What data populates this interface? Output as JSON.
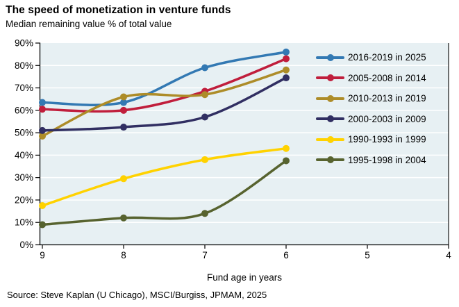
{
  "header": {
    "title": "The speed of monetization in venture funds",
    "subtitle": "Median remaining value % of total value"
  },
  "footer": {
    "source": "Source: Steve Kaplan (U Chicago), MSCI/Burgiss, JPMAM, 2025"
  },
  "chart_data": {
    "type": "line",
    "title": "The speed of monetization in venture funds",
    "subtitle": "Median remaining value % of total value",
    "xlabel": "Fund age in years",
    "ylabel": "Median remaining value % of total value",
    "x": [
      9,
      8,
      7,
      6
    ],
    "x_axis": {
      "ticks": [
        9,
        8,
        7,
        6,
        5,
        4
      ],
      "tick_labels": [
        "9",
        "8",
        "7",
        "6",
        "5",
        "4"
      ],
      "reversed": true
    },
    "y_axis": {
      "min": 0,
      "max": 90,
      "step": 10,
      "tick_labels": [
        "0%",
        "10%",
        "20%",
        "30%",
        "40%",
        "50%",
        "60%",
        "70%",
        "80%",
        "90%"
      ]
    },
    "series": [
      {
        "name": "2016-2019 in 2025",
        "color": "#3379B3",
        "values": [
          63.5,
          63.5,
          79,
          86
        ]
      },
      {
        "name": "2005-2008 in 2014",
        "color": "#C01E3C",
        "values": [
          60.5,
          60,
          68.5,
          83
        ]
      },
      {
        "name": "2010-2013 in 2019",
        "color": "#AD8C28",
        "values": [
          48.5,
          66,
          67,
          78
        ]
      },
      {
        "name": "2000-2003 in 2009",
        "color": "#312F62",
        "values": [
          51,
          52.5,
          57,
          74.5
        ]
      },
      {
        "name": "1990-1993 in 1999",
        "color": "#FFD200",
        "values": [
          17.5,
          29.5,
          38,
          43
        ]
      },
      {
        "name": "1995-1998 in 2004",
        "color": "#57632F",
        "values": [
          9,
          12,
          14,
          37.5
        ]
      }
    ],
    "legend": {
      "position": "right-inside"
    },
    "grid": true,
    "colors": {
      "plot_bg": "#E7F0F3",
      "gridline": "#FFFFFF",
      "axis": "#000000"
    }
  }
}
